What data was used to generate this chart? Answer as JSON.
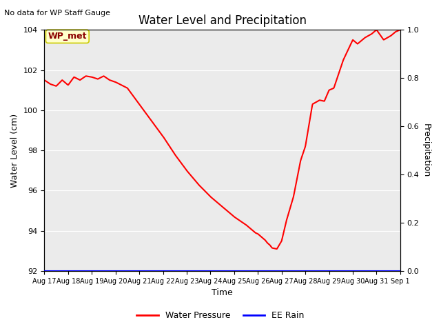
{
  "title": "Water Level and Precipitation",
  "top_left_text": "No data for WP Staff Gauge",
  "xlabel": "Time",
  "ylabel_left": "Water Level (cm)",
  "ylabel_right": "Precipitation",
  "ylim_left": [
    92,
    104
  ],
  "ylim_right": [
    0.0,
    1.0
  ],
  "yticks_left": [
    92,
    94,
    96,
    98,
    100,
    102,
    104
  ],
  "yticks_right": [
    0.0,
    0.2,
    0.4,
    0.6,
    0.8,
    1.0
  ],
  "xtick_labels": [
    "Aug 17",
    "Aug 18",
    "Aug 19",
    "Aug 20",
    "Aug 21",
    "Aug 22",
    "Aug 23",
    "Aug 24",
    "Aug 25",
    "Aug 26",
    "Aug 27",
    "Aug 28",
    "Aug 29",
    "Aug 30",
    "Aug 31",
    "Sep 1"
  ],
  "wp_met_label": "WP_met",
  "wp_met_label_color": "#8B0000",
  "wp_met_box_facecolor": "#FFFFCC",
  "wp_met_box_edgecolor": "#CCCC00",
  "legend_water_pressure_color": "#FF0000",
  "legend_ee_rain_color": "#0000FF",
  "line_color_water": "#FF0000",
  "line_color_rain": "#0000FF",
  "plot_bg_color": "#ebebeb",
  "key_t": [
    0,
    0.25,
    0.5,
    0.75,
    1.0,
    1.25,
    1.5,
    1.75,
    2.0,
    2.25,
    2.5,
    2.75,
    3.0,
    3.5,
    4.0,
    4.5,
    5.0,
    5.5,
    6.0,
    6.5,
    7.0,
    7.5,
    8.0,
    8.5,
    8.7,
    8.9,
    9.0,
    9.1,
    9.2,
    9.3,
    9.4,
    9.5,
    9.6,
    9.8,
    10.0,
    10.2,
    10.5,
    10.8,
    11.0,
    11.3,
    11.6,
    11.8,
    12.0,
    12.2,
    12.4,
    12.6,
    12.8,
    13.0,
    13.2,
    13.5,
    13.8,
    14.0,
    14.3,
    14.6,
    14.8,
    15.0
  ],
  "key_y": [
    101.5,
    101.3,
    101.2,
    101.5,
    101.25,
    101.65,
    101.5,
    101.7,
    101.65,
    101.55,
    101.7,
    101.5,
    101.4,
    101.1,
    100.3,
    99.5,
    98.7,
    97.8,
    97.0,
    96.3,
    95.7,
    95.2,
    94.7,
    94.3,
    94.1,
    93.9,
    93.85,
    93.75,
    93.65,
    93.55,
    93.4,
    93.3,
    93.15,
    93.1,
    93.5,
    94.5,
    95.7,
    97.5,
    98.2,
    100.3,
    100.5,
    100.45,
    101.0,
    101.1,
    101.8,
    102.5,
    103.0,
    103.5,
    103.3,
    103.6,
    103.8,
    104.0,
    103.5,
    103.7,
    103.9,
    104.0
  ]
}
